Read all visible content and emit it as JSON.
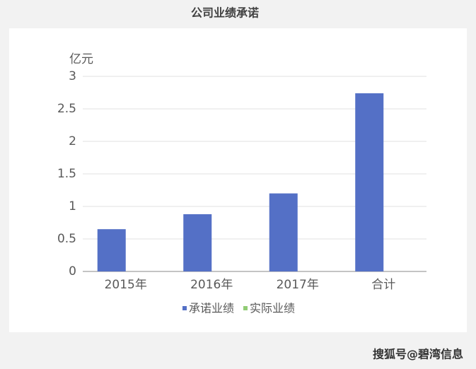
{
  "chart_data": {
    "type": "bar",
    "title": "公司业绩承诺",
    "y_label": "亿元",
    "categories": [
      "2015年",
      "2016年",
      "2017年",
      "合计"
    ],
    "series": [
      {
        "name": "承诺业绩",
        "color": "#5470c6",
        "values": [
          0.65,
          0.88,
          1.2,
          2.74
        ]
      },
      {
        "name": "实际业绩",
        "color": "#91cc75",
        "values": [
          null,
          null,
          null,
          null
        ]
      }
    ],
    "ylim": [
      0,
      3
    ],
    "yticks": [
      0,
      0.5,
      1,
      1.5,
      2,
      2.5,
      3
    ],
    "grid": true,
    "legend": "bottom",
    "source": "搜狐号@碧湾信息"
  }
}
